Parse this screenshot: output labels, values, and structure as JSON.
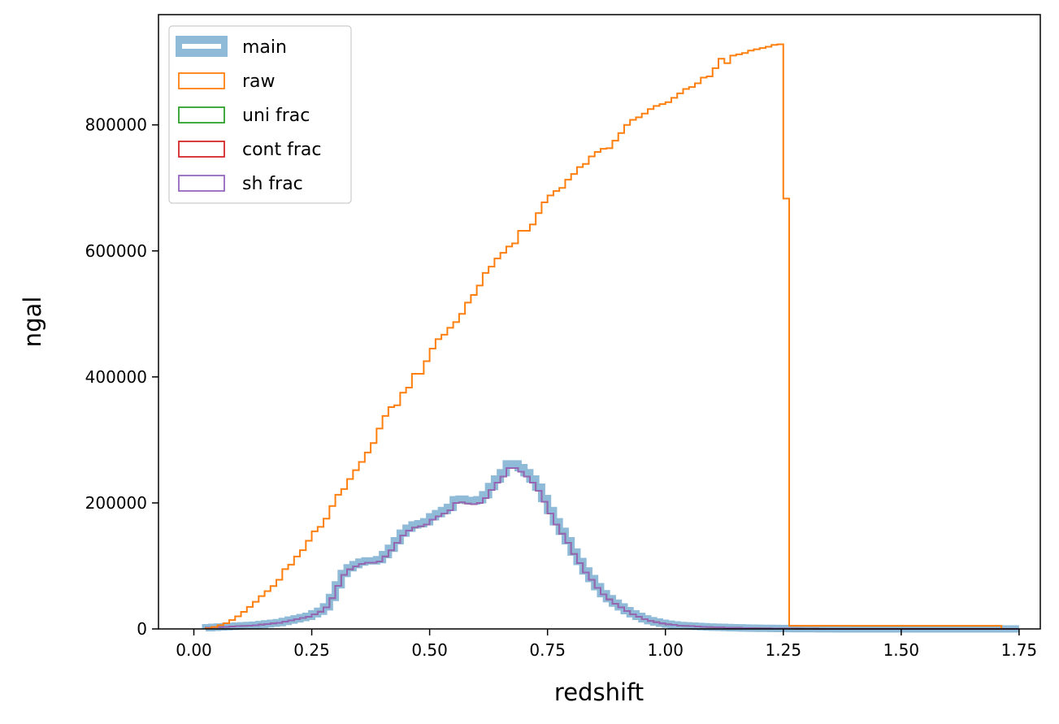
{
  "chart_data": {
    "type": "histogram-step",
    "xlabel": "redshift",
    "ylabel": "ngal",
    "xlim": [
      -0.075,
      1.795
    ],
    "ylim": [
      0,
      975000
    ],
    "xticks": [
      0.0,
      0.25,
      0.5,
      0.75,
      1.0,
      1.25,
      1.5,
      1.75
    ],
    "xtick_labels": [
      "0.00",
      "0.25",
      "0.50",
      "0.75",
      "1.00",
      "1.25",
      "1.50",
      "1.75"
    ],
    "yticks": [
      0,
      200000,
      400000,
      600000,
      800000
    ],
    "ytick_labels": [
      "0",
      "200000",
      "400000",
      "600000",
      "800000"
    ],
    "legend_position": "top-left",
    "bin_width": 0.0125,
    "series": [
      {
        "name": "main",
        "color": "#8fbbd9",
        "style": "thick",
        "x_start": 0.025,
        "values": [
          2000,
          2500,
          3000,
          3500,
          4000,
          4500,
          5000,
          5500,
          6000,
          7000,
          8000,
          9000,
          10000,
          12000,
          14000,
          16000,
          18000,
          20000,
          24000,
          28000,
          35000,
          50000,
          70000,
          88000,
          97000,
          102000,
          106000,
          108000,
          108000,
          110000,
          118000,
          128000,
          140000,
          152000,
          160000,
          165000,
          167000,
          170000,
          178000,
          183000,
          188000,
          193000,
          205000,
          206000,
          204000,
          203000,
          205000,
          213000,
          226000,
          238000,
          248000,
          262000,
          262000,
          256000,
          248000,
          238000,
          225000,
          207000,
          188000,
          170000,
          155000,
          140000,
          122000,
          107000,
          92000,
          80000,
          67000,
          56000,
          48000,
          41000,
          35000,
          29000,
          24000,
          20000,
          16000,
          13000,
          11000,
          9000,
          7500,
          6500,
          5500,
          5000,
          4500,
          4000,
          3500,
          3000,
          2800,
          2500,
          2200,
          2000,
          1800,
          1500,
          1300,
          1100,
          1000,
          900,
          800,
          700,
          600,
          500,
          400,
          350,
          300,
          250,
          200,
          150,
          100,
          80,
          60,
          40,
          30,
          20,
          10,
          5,
          2,
          1,
          1,
          1,
          1,
          1,
          1,
          1,
          1,
          1,
          1,
          1,
          1,
          1,
          1,
          1,
          1,
          1,
          1,
          1,
          1,
          1,
          1,
          1
        ]
      },
      {
        "name": "raw",
        "color": "#ff7f0e",
        "style": "step",
        "x_start": 0.025,
        "values": [
          1000,
          3000,
          6000,
          9000,
          14000,
          20000,
          27000,
          35000,
          43000,
          52000,
          60000,
          68000,
          78000,
          95000,
          102000,
          115000,
          125000,
          140000,
          155000,
          162000,
          175000,
          195000,
          213000,
          222000,
          238000,
          252000,
          265000,
          280000,
          295000,
          318000,
          338000,
          352000,
          355000,
          375000,
          383000,
          405000,
          405000,
          425000,
          445000,
          460000,
          467000,
          478000,
          487000,
          500000,
          518000,
          530000,
          545000,
          565000,
          575000,
          588000,
          597000,
          607000,
          612000,
          632000,
          632000,
          642000,
          660000,
          677000,
          688000,
          695000,
          700000,
          713000,
          722000,
          733000,
          738000,
          750000,
          757000,
          762000,
          763000,
          775000,
          787000,
          800000,
          808000,
          812000,
          818000,
          825000,
          830000,
          833000,
          836000,
          843000,
          850000,
          857000,
          860000,
          866000,
          875000,
          877000,
          890000,
          905000,
          898000,
          910000,
          912000,
          914000,
          918000,
          920000,
          922000,
          924000,
          927000,
          928000,
          683000,
          5000
        ],
        "tail_x": 1.7125
      },
      {
        "name": "uni frac",
        "color": "#2ca02c",
        "style": "step"
      },
      {
        "name": "cont frac",
        "color": "#d62728",
        "style": "step"
      },
      {
        "name": "sh frac",
        "color": "#9467bd",
        "style": "step"
      }
    ]
  }
}
